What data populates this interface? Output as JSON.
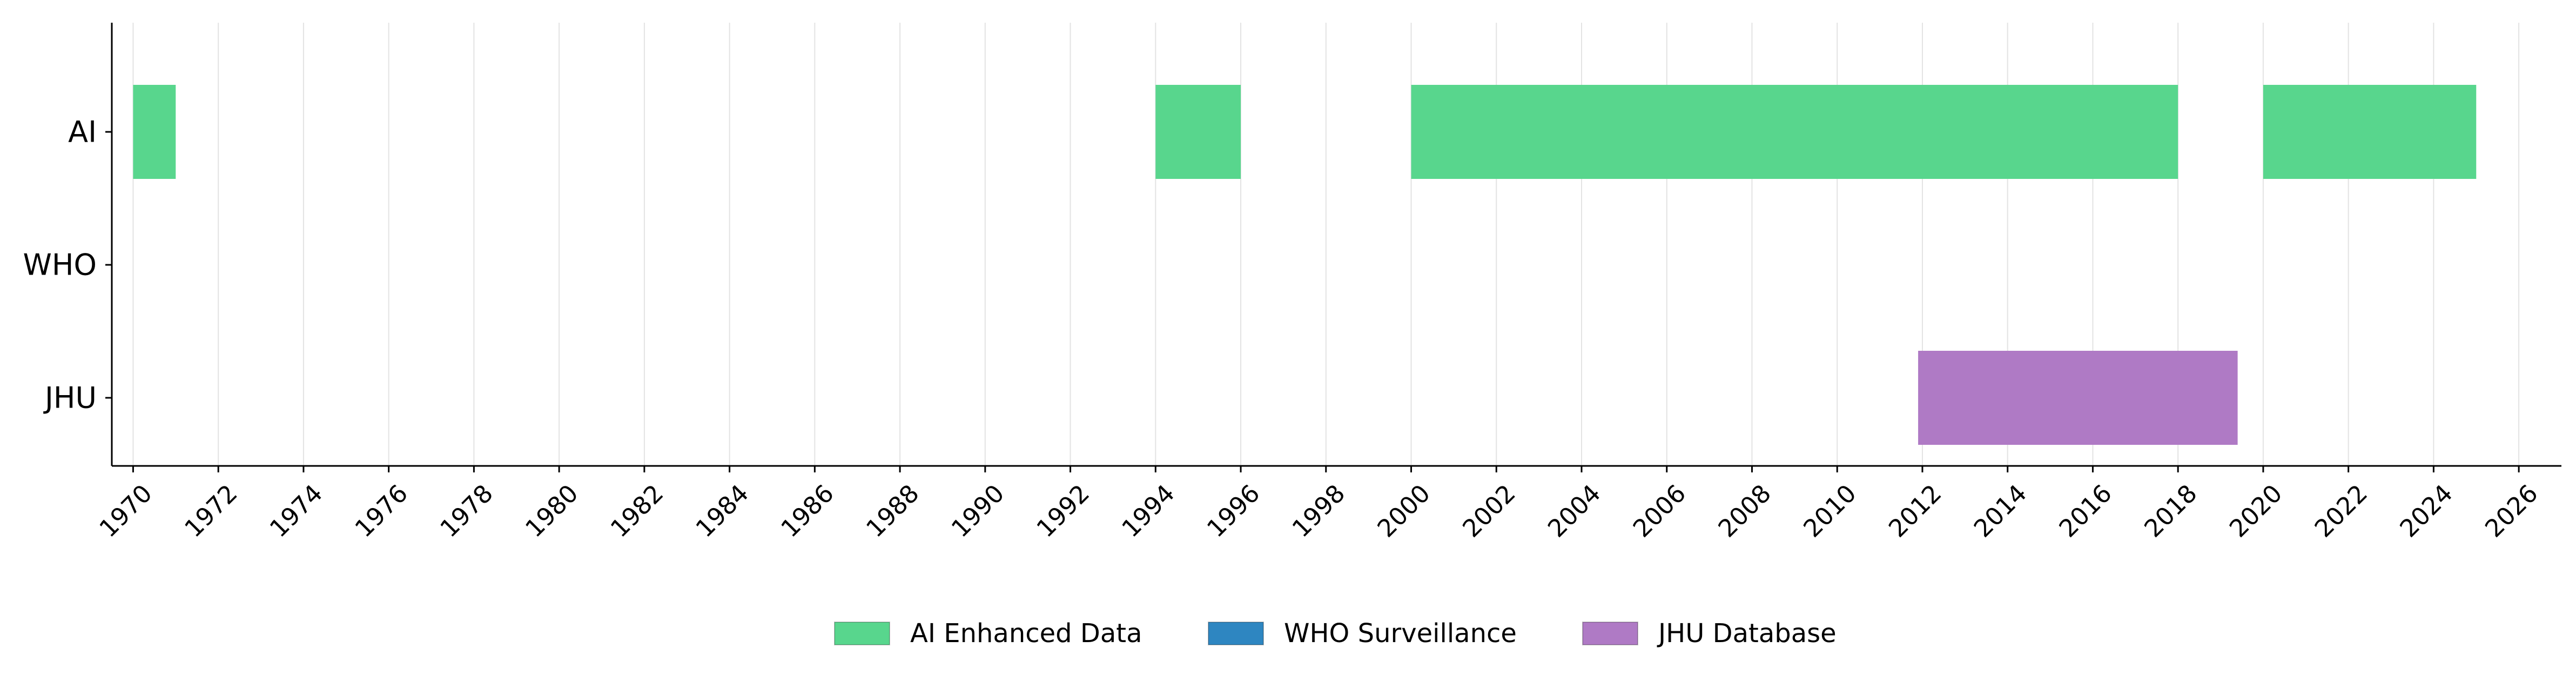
{
  "chart_data": {
    "type": "timeline",
    "title": "",
    "xlabel": "",
    "ylabel": "",
    "xlim": [
      1969.5,
      2027
    ],
    "x_ticks": [
      1970,
      1972,
      1974,
      1976,
      1978,
      1980,
      1982,
      1984,
      1986,
      1988,
      1990,
      1992,
      1994,
      1996,
      1998,
      2000,
      2002,
      2004,
      2006,
      2008,
      2010,
      2012,
      2014,
      2016,
      2018,
      2020,
      2022,
      2024,
      2026
    ],
    "x_tick_labels": [
      "1970",
      "1972",
      "1974",
      "1976",
      "1978",
      "1980",
      "1982",
      "1984",
      "1986",
      "1988",
      "1990",
      "1992",
      "1994",
      "1996",
      "1998",
      "2000",
      "2002",
      "2004",
      "2006",
      "2008",
      "2010",
      "2012",
      "2014",
      "2016",
      "2018",
      "2020",
      "2022",
      "2024",
      "2026"
    ],
    "x_tick_rotation": 45,
    "grid": "vertical",
    "categories": [
      "AI",
      "WHO",
      "JHU"
    ],
    "series": [
      {
        "name": "AI Enhanced Data",
        "category": "AI",
        "color": "#58d68d",
        "intervals": [
          [
            1970,
            1971
          ],
          [
            1994,
            1996
          ],
          [
            2000,
            2018
          ],
          [
            2020,
            2025
          ]
        ]
      },
      {
        "name": "WHO Surveillance",
        "category": "WHO",
        "color": "#2e86c1",
        "intervals": []
      },
      {
        "name": "JHU Database",
        "category": "JHU",
        "color": "#af7ac5",
        "intervals": [
          [
            2011.9,
            2019.4
          ]
        ]
      }
    ],
    "legend": {
      "position": "bottom-center",
      "entries": [
        "AI Enhanced Data",
        "WHO Surveillance",
        "JHU Database"
      ]
    }
  }
}
